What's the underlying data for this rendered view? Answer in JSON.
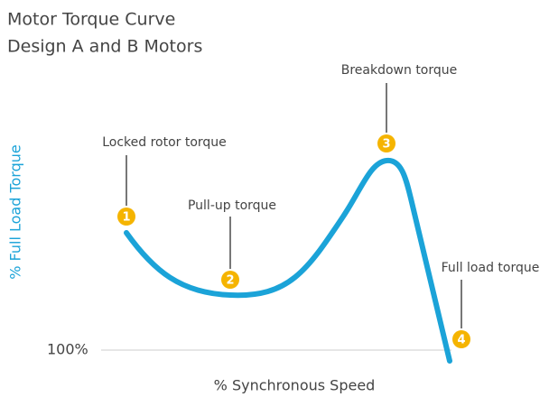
{
  "title": [
    "Motor Torque Curve",
    "Design A and B Motors"
  ],
  "y_axis_label": "% Full Load Torque",
  "x_axis_label": "% Synchronous Speed",
  "baseline_label": "100%",
  "annotations": [
    {
      "marker": "1",
      "label": "Locked rotor torque"
    },
    {
      "marker": "2",
      "label": "Pull-up torque"
    },
    {
      "marker": "3",
      "label": "Breakdown torque"
    },
    {
      "marker": "4",
      "label": "Full load torque"
    }
  ]
}
